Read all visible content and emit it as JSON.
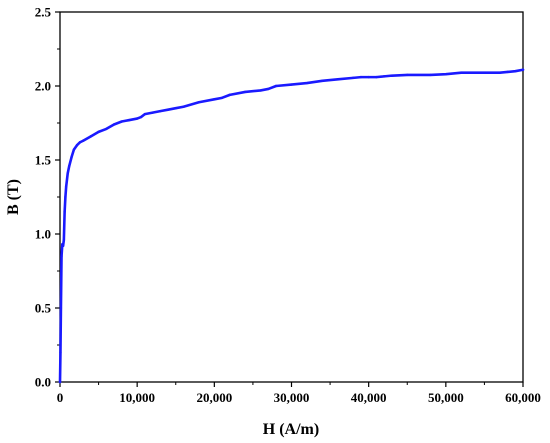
{
  "chart_data": {
    "type": "line",
    "title": "",
    "xlabel": "H (A/m)",
    "ylabel": "B (T)",
    "xlim": [
      0,
      60000
    ],
    "ylim": [
      0,
      2.5
    ],
    "x_ticks": [
      0,
      10000,
      20000,
      30000,
      40000,
      50000,
      60000
    ],
    "x_tick_labels": [
      "0",
      "10,000",
      "20,000",
      "30,000",
      "40,000",
      "50,000",
      "60,000"
    ],
    "y_ticks": [
      0,
      0.5,
      1.0,
      1.5,
      2.0,
      2.5
    ],
    "y_tick_labels": [
      "0.0",
      "0.5",
      "1.0",
      "1.5",
      "2.0",
      "2.5"
    ],
    "grid": false,
    "legend": "none",
    "series": [
      {
        "color": "#1a1aff",
        "x": [
          0,
          60,
          120,
          200,
          300,
          400,
          500,
          600,
          700,
          800,
          1000,
          1200,
          1500,
          1800,
          2200,
          2600,
          3000,
          4000,
          5000,
          6000,
          7000,
          8000,
          9000,
          10000,
          10500,
          11000,
          12000,
          13000,
          14000,
          15000,
          16000,
          18000,
          20000,
          21000,
          22000,
          24000,
          26000,
          27000,
          28000,
          30000,
          32000,
          34000,
          36000,
          38000,
          39000,
          40000,
          41000,
          42000,
          43000,
          45000,
          48000,
          50000,
          52000,
          55000,
          57000,
          58000,
          59000,
          60000
        ],
        "y": [
          0.0,
          0.2,
          0.5,
          0.85,
          0.93,
          0.92,
          0.96,
          1.15,
          1.25,
          1.32,
          1.41,
          1.46,
          1.52,
          1.57,
          1.6,
          1.62,
          1.63,
          1.66,
          1.69,
          1.71,
          1.74,
          1.76,
          1.77,
          1.78,
          1.79,
          1.81,
          1.82,
          1.83,
          1.84,
          1.85,
          1.86,
          1.89,
          1.91,
          1.92,
          1.94,
          1.96,
          1.97,
          1.98,
          2.0,
          2.01,
          2.02,
          2.035,
          2.045,
          2.055,
          2.06,
          2.06,
          2.06,
          2.065,
          2.07,
          2.075,
          2.075,
          2.08,
          2.09,
          2.09,
          2.09,
          2.095,
          2.1,
          2.11
        ]
      }
    ]
  }
}
